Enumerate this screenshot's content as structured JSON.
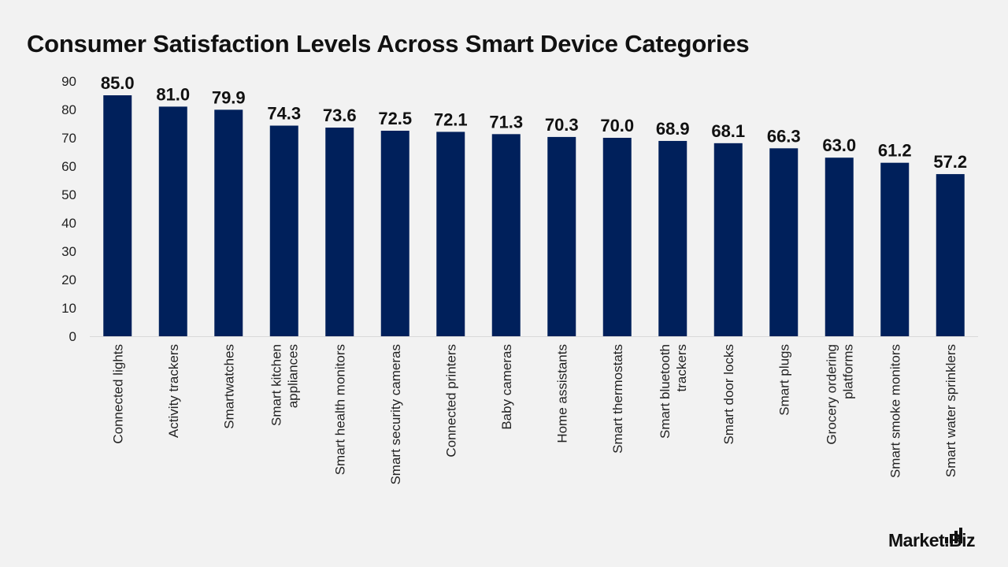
{
  "title": "Consumer Satisfaction Levels Across Smart Device Categories",
  "brand": {
    "logo_text": "Market.Biz"
  },
  "colors": {
    "bar": "#00205b",
    "background": "#f2f2f2",
    "text": "#111111",
    "axis": "#d9d9d9"
  },
  "chart_data": {
    "type": "bar",
    "title": "Consumer Satisfaction Levels Across Smart Device Categories",
    "xlabel": "",
    "ylabel": "",
    "ylim": [
      0,
      90
    ],
    "yticks": [
      0,
      10,
      20,
      30,
      40,
      50,
      60,
      70,
      80,
      90
    ],
    "grid": false,
    "legend": "none",
    "categories": [
      [
        "Connected lights"
      ],
      [
        "Activity trackers"
      ],
      [
        "Smartwatches"
      ],
      [
        "Smart kitchen",
        "appliances"
      ],
      [
        "Smart health monitors"
      ],
      [
        "Smart security cameras"
      ],
      [
        "Connected printers"
      ],
      [
        "Baby cameras"
      ],
      [
        "Home assistants"
      ],
      [
        "Smart thermostats"
      ],
      [
        "Smart bluetooth",
        "trackers"
      ],
      [
        "Smart door locks"
      ],
      [
        "Smart plugs"
      ],
      [
        "Grocery ordering",
        "platforms"
      ],
      [
        "Smart smoke monitors"
      ],
      [
        "Smart water sprinklers"
      ]
    ],
    "values": [
      85.0,
      81.0,
      79.9,
      74.3,
      73.6,
      72.5,
      72.1,
      71.3,
      70.3,
      70.0,
      68.9,
      68.1,
      66.3,
      63.0,
      61.2,
      57.2
    ],
    "data_labels": [
      "85.0",
      "81.0",
      "79.9",
      "74.3",
      "73.6",
      "72.5",
      "72.1",
      "71.3",
      "70.3",
      "70.0",
      "68.9",
      "68.1",
      "66.3",
      "63.0",
      "61.2",
      "57.2"
    ]
  }
}
